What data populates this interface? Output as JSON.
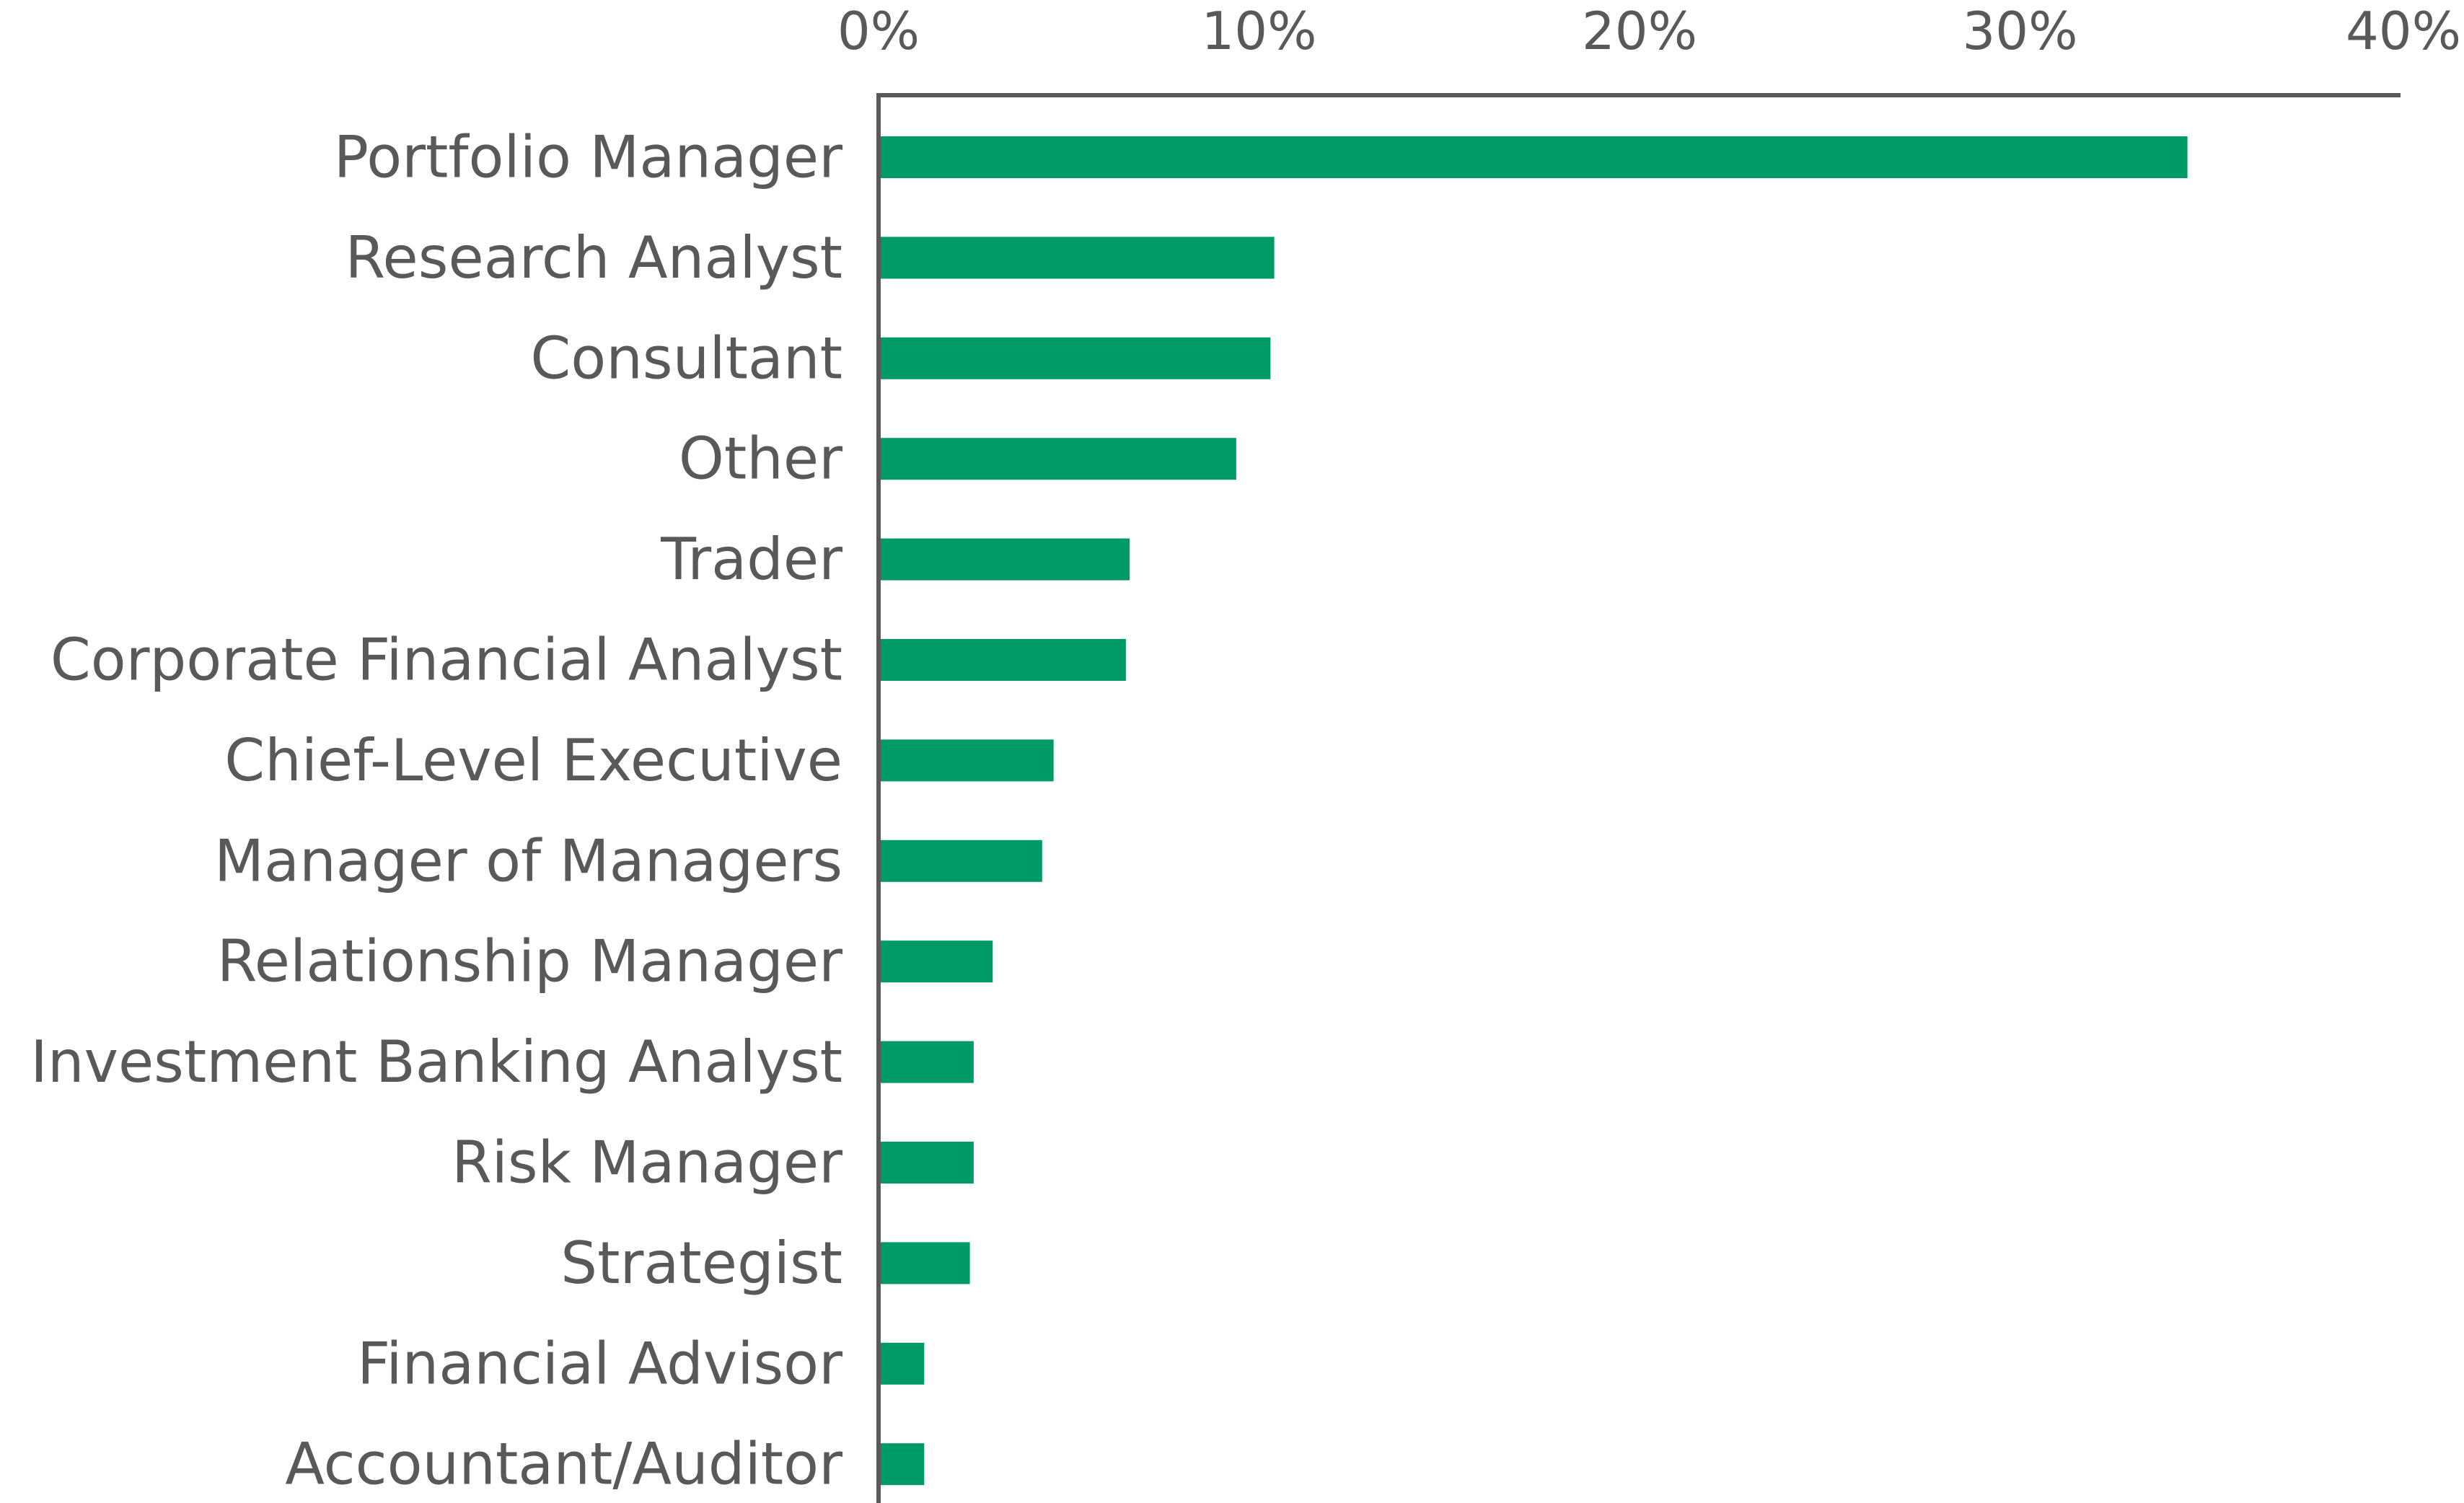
{
  "chart_data": {
    "type": "bar",
    "orientation": "horizontal",
    "categories": [
      "Portfolio Manager",
      "Research Analyst",
      "Consultant",
      "Other",
      "Trader",
      "Corporate Financial Analyst",
      "Chief-Level Executive",
      "Manager of Managers",
      "Relationship Manager",
      "Investment Banking Analyst",
      "Risk Manager",
      "Strategist",
      "Financial Advisor",
      "Accountant/Auditor"
    ],
    "values": [
      34.4,
      10.4,
      10.3,
      9.4,
      6.6,
      6.5,
      4.6,
      4.3,
      3.0,
      2.5,
      2.5,
      2.4,
      1.2,
      1.2
    ],
    "value_format": "percent",
    "xlim": [
      0,
      40
    ],
    "x_ticks": [
      "0%",
      "10%",
      "20%",
      "30%",
      "40%"
    ],
    "x_tick_values": [
      0,
      10,
      20,
      30,
      40
    ],
    "x_axis_position": "top",
    "title": "",
    "xlabel": "",
    "ylabel": "",
    "grid": false,
    "legend": "none",
    "colors": {
      "bar": "#009a66",
      "axis": "#595959",
      "text": "#595959"
    }
  }
}
